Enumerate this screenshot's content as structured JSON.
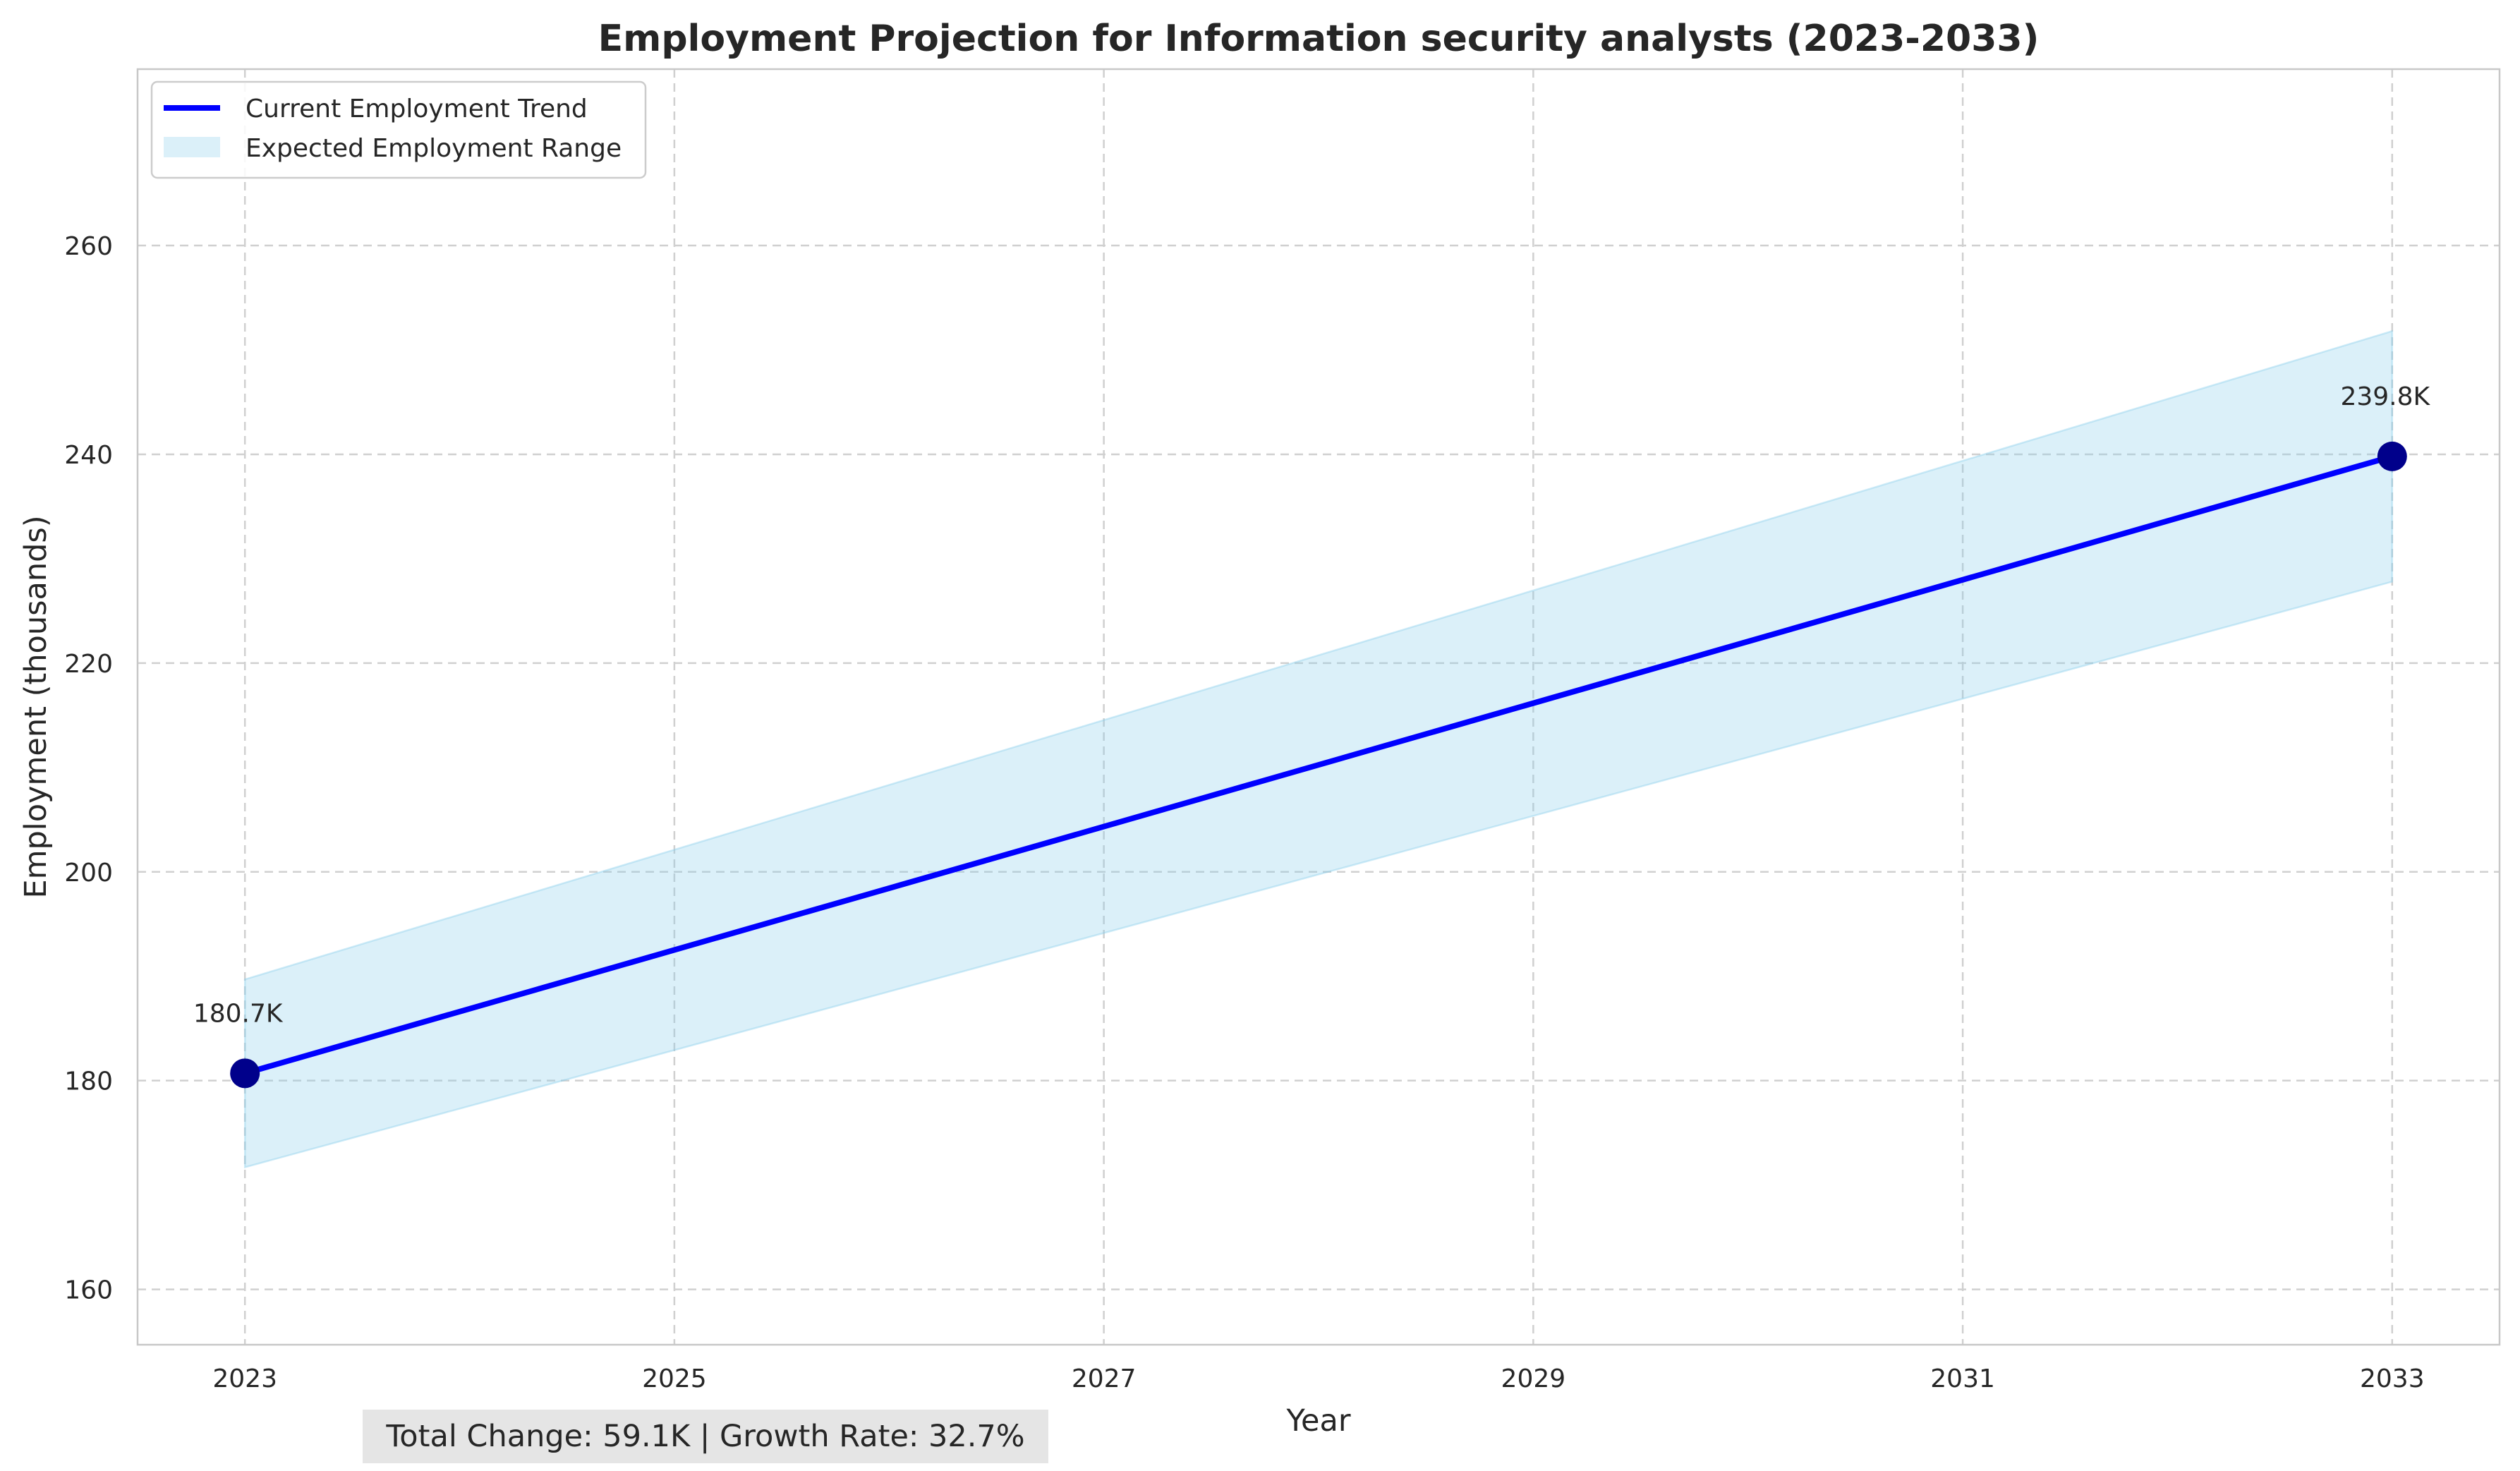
{
  "chart_data": {
    "type": "line",
    "title": "Employment Projection for Information security analysts (2023-2033)",
    "xlabel": "Year",
    "ylabel": "Employment (thousands)",
    "xlim": [
      2022.5,
      2033.5
    ],
    "ylim": [
      154.7,
      276.9
    ],
    "x_ticks": [
      2023,
      2025,
      2027,
      2029,
      2031,
      2033
    ],
    "y_ticks": [
      160,
      180,
      200,
      220,
      240,
      260
    ],
    "grid": true,
    "grid_style": "dashed",
    "legend_position": "top-left",
    "series": [
      {
        "name": "Current Employment Trend",
        "kind": "line",
        "color": "#0000ff",
        "x": [
          2023,
          2033
        ],
        "y": [
          180.7,
          239.8
        ]
      },
      {
        "name": "Expected Employment Range",
        "kind": "band",
        "color": "#87ceeb",
        "x": [
          2023,
          2033
        ],
        "lower": [
          171.7,
          227.8
        ],
        "upper": [
          189.7,
          251.8
        ]
      }
    ],
    "markers": {
      "color": "#00008b",
      "points": [
        {
          "x": 2023,
          "y": 180.7,
          "label": "180.7K"
        },
        {
          "x": 2033,
          "y": 239.8,
          "label": "239.8K"
        }
      ]
    },
    "summary_box": {
      "text": "Total Change: 59.1K | Growth Rate: 32.7%",
      "background": "#e5e5e5"
    }
  }
}
